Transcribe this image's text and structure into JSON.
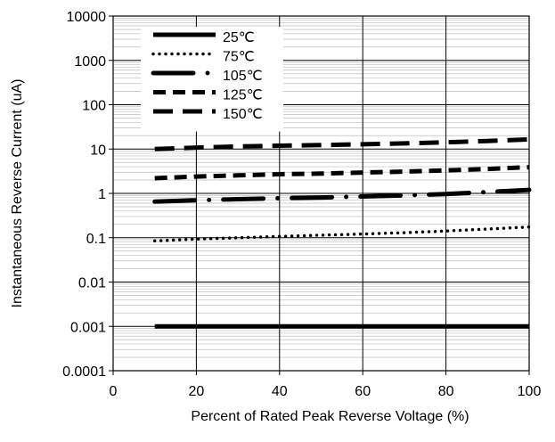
{
  "chart_data": {
    "type": "line",
    "title": "",
    "xlabel": "Percent of Rated Peak Reverse Voltage (%)",
    "ylabel": "Instantaneous Reverse Current (uA)",
    "xscale": "linear",
    "yscale": "log",
    "xlim": [
      0,
      100
    ],
    "ylim": [
      0.0001,
      10000
    ],
    "x_ticks": [
      0,
      20,
      40,
      60,
      80,
      100
    ],
    "x_tick_labels": [
      "0",
      "20",
      "40",
      "60",
      "80",
      "100"
    ],
    "y_ticks": [
      0.0001,
      0.001,
      0.01,
      0.1,
      1,
      10,
      100,
      1000,
      10000
    ],
    "y_tick_labels": [
      "0.0001",
      "0.001",
      "0.01",
      "0.1",
      "1",
      "10",
      "100",
      "1000",
      "10000"
    ],
    "grid": true,
    "legend_position": "top-left",
    "series": [
      {
        "name": "25℃",
        "style": "solid",
        "x": [
          10,
          100
        ],
        "y": [
          0.001,
          0.001
        ]
      },
      {
        "name": "75℃",
        "style": "dotted",
        "x": [
          10,
          20,
          30,
          40,
          50,
          60,
          70,
          80,
          90,
          100
        ],
        "y": [
          0.085,
          0.093,
          0.1,
          0.107,
          0.114,
          0.121,
          0.13,
          0.142,
          0.157,
          0.175
        ]
      },
      {
        "name": "105℃",
        "style": "dash-dot",
        "x": [
          10,
          20,
          30,
          40,
          50,
          60,
          70,
          80,
          90,
          100
        ],
        "y": [
          0.65,
          0.7,
          0.74,
          0.78,
          0.81,
          0.85,
          0.9,
          0.97,
          1.07,
          1.2
        ]
      },
      {
        "name": "125℃",
        "style": "dashed",
        "x": [
          10,
          20,
          30,
          40,
          50,
          60,
          70,
          80,
          90,
          100
        ],
        "y": [
          2.2,
          2.4,
          2.55,
          2.7,
          2.8,
          2.95,
          3.1,
          3.3,
          3.55,
          3.9
        ]
      },
      {
        "name": "150℃",
        "style": "long-dash",
        "x": [
          10,
          20,
          30,
          40,
          50,
          60,
          70,
          80,
          90,
          100
        ],
        "y": [
          10,
          10.8,
          11.4,
          11.9,
          12.3,
          12.8,
          13.4,
          14.2,
          15.2,
          16.5
        ]
      }
    ]
  }
}
